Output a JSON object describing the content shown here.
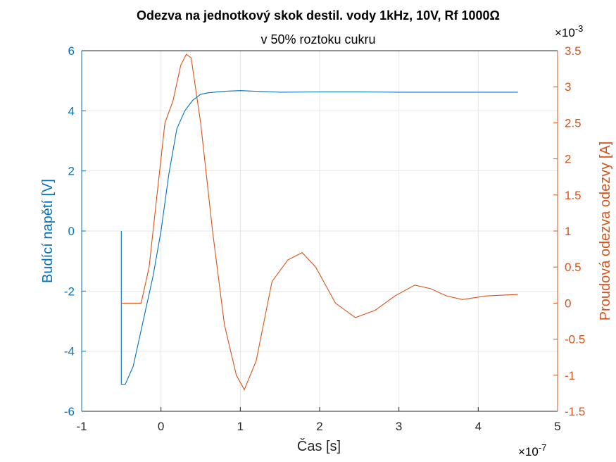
{
  "chart_data": {
    "type": "line",
    "title": "Odezva na jednotkový skok destil. vody 1kHz, 10V, Rf 1000Ω",
    "subtitle": "v 50% roztoku cukru",
    "xlabel": "Čas [s]",
    "x_exponent_label": "×10",
    "x_exponent": "-7",
    "xlim": [
      -1e-07,
      5e-07
    ],
    "x_ticks": [
      -1,
      0,
      1,
      2,
      3,
      4,
      5
    ],
    "y_left": {
      "label": "Budící napětí [V]",
      "lim": [
        -6,
        6
      ],
      "ticks": [
        -6,
        -4,
        -2,
        0,
        2,
        4,
        6
      ],
      "color": "#0072BD"
    },
    "y_right": {
      "label": "Proudová odezva odezvy [A]",
      "exponent_label": "×10",
      "exponent": "-3",
      "lim": [
        -0.0015,
        0.0035
      ],
      "ticks": [
        "-1.5",
        "-1",
        "-0.5",
        "0",
        "0.5",
        "1",
        "1.5",
        "2",
        "2.5",
        "3",
        "3.5"
      ],
      "color": "#D95319"
    },
    "grid": true,
    "series": [
      {
        "axis": "left",
        "color": "#0072BD",
        "x": [
          -5e-08,
          -5e-08,
          -4.5e-08,
          -3.5e-08,
          -2.5e-08,
          -1e-08,
          0,
          1e-08,
          2e-08,
          3e-08,
          4e-08,
          5e-08,
          6e-08,
          8e-08,
          1e-07,
          1.5e-07,
          2e-07,
          2.5e-07,
          3e-07,
          3.5e-07,
          4e-07,
          4.5e-07
        ],
        "y": [
          0,
          -5.1,
          -5.1,
          -4.5,
          -3.3,
          -1.5,
          0,
          1.9,
          3.4,
          4.0,
          4.35,
          4.55,
          4.6,
          4.65,
          4.67,
          4.62,
          4.63,
          4.63,
          4.62,
          4.62,
          4.62,
          4.62
        ]
      },
      {
        "axis": "right",
        "color": "#D95319",
        "x": [
          -5e-08,
          -4e-08,
          -2.5e-08,
          -1.5e-08,
          -5e-09,
          5e-09,
          1.5e-08,
          2.5e-08,
          3.2e-08,
          3.8e-08,
          5e-08,
          6.5e-08,
          8e-08,
          9.5e-08,
          1.05e-07,
          1.2e-07,
          1.4e-07,
          1.6e-07,
          1.78e-07,
          1.95e-07,
          2.2e-07,
          2.45e-07,
          2.7e-07,
          2.95e-07,
          3.2e-07,
          3.4e-07,
          3.6e-07,
          3.8e-07,
          4.1e-07,
          4.5e-07
        ],
        "y": [
          -0.0,
          -0.0,
          0.0,
          0.0005,
          0.0015,
          0.0025,
          0.0028,
          0.0033,
          0.00345,
          0.0034,
          0.0025,
          0.001,
          -0.0003,
          -0.001,
          -0.0012,
          -0.0008,
          0.0003,
          0.0006,
          0.0007,
          0.0005,
          0.0,
          -0.0002,
          -0.0001,
          0.0001,
          0.00025,
          0.0002,
          0.0001,
          5e-05,
          0.0001,
          0.00012
        ]
      }
    ]
  }
}
